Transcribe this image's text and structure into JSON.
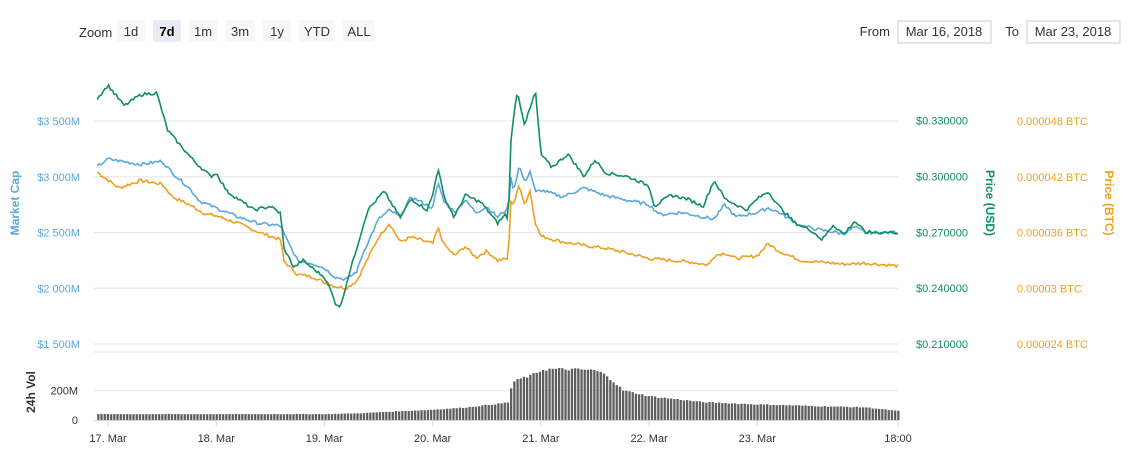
{
  "colors": {
    "market_cap": "#5ba8db",
    "price_usd": "#0f8f64",
    "price_btc": "#f0a020",
    "volume": "#5e5e5e"
  },
  "zoom": {
    "label": "Zoom",
    "buttons": [
      {
        "label": "1d",
        "active": false
      },
      {
        "label": "7d",
        "active": true
      },
      {
        "label": "1m",
        "active": false
      },
      {
        "label": "3m",
        "active": false
      },
      {
        "label": "1y",
        "active": false
      },
      {
        "label": "YTD",
        "active": false
      },
      {
        "label": "ALL",
        "active": false
      }
    ]
  },
  "range": {
    "from_label": "From",
    "from_value": "Mar 16, 2018",
    "to_label": "To",
    "to_value": "Mar 23, 2018"
  },
  "chart_data": {
    "type": "line",
    "x_range": [
      0,
      7.3
    ],
    "x_ticks": [
      {
        "x": 0.0,
        "label": "17. Mar"
      },
      {
        "x": 1.0,
        "label": "18. Mar"
      },
      {
        "x": 2.0,
        "label": "19. Mar"
      },
      {
        "x": 3.0,
        "label": "20. Mar"
      },
      {
        "x": 4.0,
        "label": "21. Mar"
      },
      {
        "x": 5.0,
        "label": "22. Mar"
      },
      {
        "x": 6.0,
        "label": "23. Mar"
      },
      {
        "x": 7.3,
        "label": "18:00"
      }
    ],
    "grid": true,
    "axes": {
      "market_cap": {
        "title": "Market Cap",
        "min": 1500,
        "max": 3850,
        "ticks": [
          {
            "v": 1500,
            "label": "$1 500M"
          },
          {
            "v": 2000,
            "label": "$2 000M"
          },
          {
            "v": 2500,
            "label": "$2 500M"
          },
          {
            "v": 3000,
            "label": "$3 000M"
          },
          {
            "v": 3500,
            "label": "$3 500M"
          }
        ]
      },
      "price_usd": {
        "title": "Price (USD)",
        "min": 0.21,
        "max": 0.3508,
        "ticks": [
          {
            "v": 0.21,
            "label": "$0.210000"
          },
          {
            "v": 0.24,
            "label": "$0.240000"
          },
          {
            "v": 0.27,
            "label": "$0.270000"
          },
          {
            "v": 0.3,
            "label": "$0.300000"
          },
          {
            "v": 0.33,
            "label": "$0.330000"
          }
        ]
      },
      "price_btc": {
        "title": "Price (BTC)",
        "min": 2.4e-05,
        "max": 5.22e-05,
        "ticks": [
          {
            "v": 2.4e-05,
            "label": "0.000024 BTC"
          },
          {
            "v": 3e-05,
            "label": "0.00003 BTC"
          },
          {
            "v": 3.6e-05,
            "label": "0.000036 BTC"
          },
          {
            "v": 4.2e-05,
            "label": "0.000042 BTC"
          },
          {
            "v": 4.8e-05,
            "label": "0.000048 BTC"
          }
        ]
      },
      "volume": {
        "title": "24h Vol",
        "min": 0,
        "max": 460,
        "ticks": [
          {
            "v": 0,
            "label": "0"
          },
          {
            "v": 200,
            "label": "200M"
          }
        ]
      }
    },
    "series": [
      {
        "name": "Market Cap",
        "key": "market_cap",
        "unit": "USD millions",
        "points": [
          [
            -0.1,
            3090
          ],
          [
            0.0,
            3160
          ],
          [
            0.3,
            3110
          ],
          [
            0.5,
            3140
          ],
          [
            0.6,
            3030
          ],
          [
            0.75,
            2900
          ],
          [
            0.85,
            2780
          ],
          [
            1.0,
            2720
          ],
          [
            1.2,
            2640
          ],
          [
            1.4,
            2580
          ],
          [
            1.6,
            2560
          ],
          [
            1.62,
            2500
          ],
          [
            1.75,
            2250
          ],
          [
            1.9,
            2220
          ],
          [
            2.0,
            2180
          ],
          [
            2.1,
            2100
          ],
          [
            2.2,
            2080
          ],
          [
            2.3,
            2150
          ],
          [
            2.35,
            2300
          ],
          [
            2.5,
            2620
          ],
          [
            2.6,
            2700
          ],
          [
            2.7,
            2640
          ],
          [
            2.8,
            2820
          ],
          [
            3.0,
            2720
          ],
          [
            3.05,
            2950
          ],
          [
            3.1,
            2790
          ],
          [
            3.2,
            2680
          ],
          [
            3.3,
            2790
          ],
          [
            3.4,
            2680
          ],
          [
            3.5,
            2730
          ],
          [
            3.6,
            2640
          ],
          [
            3.7,
            2720
          ],
          [
            3.72,
            3000
          ],
          [
            3.75,
            2880
          ],
          [
            3.8,
            3100
          ],
          [
            3.85,
            2950
          ],
          [
            3.9,
            3050
          ],
          [
            3.95,
            2860
          ],
          [
            4.0,
            2880
          ],
          [
            4.2,
            2820
          ],
          [
            4.4,
            2900
          ],
          [
            4.6,
            2830
          ],
          [
            4.8,
            2790
          ],
          [
            5.0,
            2750
          ],
          [
            5.1,
            2660
          ],
          [
            5.3,
            2680
          ],
          [
            5.5,
            2640
          ],
          [
            5.6,
            2620
          ],
          [
            5.7,
            2750
          ],
          [
            5.8,
            2640
          ],
          [
            6.0,
            2680
          ],
          [
            6.1,
            2720
          ],
          [
            6.2,
            2680
          ],
          [
            6.4,
            2560
          ],
          [
            6.6,
            2520
          ],
          [
            6.8,
            2490
          ],
          [
            6.9,
            2550
          ],
          [
            7.0,
            2500
          ],
          [
            7.3,
            2500
          ]
        ]
      },
      {
        "name": "Price (USD)",
        "key": "price_usd",
        "unit": "USD",
        "points": [
          [
            -0.1,
            0.342
          ],
          [
            0.0,
            0.349
          ],
          [
            0.15,
            0.338
          ],
          [
            0.3,
            0.344
          ],
          [
            0.45,
            0.345
          ],
          [
            0.55,
            0.325
          ],
          [
            0.65,
            0.318
          ],
          [
            0.8,
            0.308
          ],
          [
            0.95,
            0.3
          ],
          [
            1.0,
            0.302
          ],
          [
            1.1,
            0.292
          ],
          [
            1.2,
            0.288
          ],
          [
            1.35,
            0.282
          ],
          [
            1.5,
            0.284
          ],
          [
            1.6,
            0.28
          ],
          [
            1.62,
            0.262
          ],
          [
            1.72,
            0.251
          ],
          [
            1.8,
            0.255
          ],
          [
            1.95,
            0.248
          ],
          [
            2.0,
            0.246
          ],
          [
            2.05,
            0.24
          ],
          [
            2.1,
            0.232
          ],
          [
            2.15,
            0.23
          ],
          [
            2.2,
            0.242
          ],
          [
            2.28,
            0.258
          ],
          [
            2.4,
            0.282
          ],
          [
            2.55,
            0.292
          ],
          [
            2.7,
            0.278
          ],
          [
            2.8,
            0.288
          ],
          [
            2.95,
            0.282
          ],
          [
            3.0,
            0.29
          ],
          [
            3.05,
            0.305
          ],
          [
            3.1,
            0.29
          ],
          [
            3.2,
            0.278
          ],
          [
            3.3,
            0.29
          ],
          [
            3.45,
            0.286
          ],
          [
            3.6,
            0.275
          ],
          [
            3.68,
            0.28
          ],
          [
            3.7,
            0.275
          ],
          [
            3.72,
            0.318
          ],
          [
            3.78,
            0.346
          ],
          [
            3.85,
            0.328
          ],
          [
            3.92,
            0.34
          ],
          [
            3.95,
            0.346
          ],
          [
            4.0,
            0.312
          ],
          [
            4.1,
            0.305
          ],
          [
            4.25,
            0.312
          ],
          [
            4.4,
            0.3
          ],
          [
            4.5,
            0.309
          ],
          [
            4.6,
            0.302
          ],
          [
            4.8,
            0.3
          ],
          [
            5.0,
            0.295
          ],
          [
            5.05,
            0.284
          ],
          [
            5.2,
            0.29
          ],
          [
            5.35,
            0.288
          ],
          [
            5.5,
            0.284
          ],
          [
            5.6,
            0.298
          ],
          [
            5.7,
            0.288
          ],
          [
            5.9,
            0.282
          ],
          [
            6.0,
            0.288
          ],
          [
            6.1,
            0.292
          ],
          [
            6.2,
            0.284
          ],
          [
            6.35,
            0.275
          ],
          [
            6.5,
            0.271
          ],
          [
            6.6,
            0.266
          ],
          [
            6.7,
            0.274
          ],
          [
            6.8,
            0.269
          ],
          [
            6.9,
            0.276
          ],
          [
            7.0,
            0.27
          ],
          [
            7.3,
            0.27
          ]
        ]
      },
      {
        "name": "Price (BTC)",
        "key": "price_btc",
        "unit": "BTC",
        "points": [
          [
            -0.1,
            4.25e-05
          ],
          [
            0.1,
            4.08e-05
          ],
          [
            0.3,
            4.16e-05
          ],
          [
            0.5,
            4.12e-05
          ],
          [
            0.6,
            3.98e-05
          ],
          [
            0.75,
            3.9e-05
          ],
          [
            0.9,
            3.8e-05
          ],
          [
            1.0,
            3.78e-05
          ],
          [
            1.2,
            3.7e-05
          ],
          [
            1.4,
            3.6e-05
          ],
          [
            1.6,
            3.52e-05
          ],
          [
            1.62,
            3.3e-05
          ],
          [
            1.75,
            3.15e-05
          ],
          [
            1.9,
            3.12e-05
          ],
          [
            2.0,
            3.06e-05
          ],
          [
            2.1,
            3.02e-05
          ],
          [
            2.2,
            3e-05
          ],
          [
            2.3,
            3.08e-05
          ],
          [
            2.35,
            3.2e-05
          ],
          [
            2.5,
            3.55e-05
          ],
          [
            2.6,
            3.7e-05
          ],
          [
            2.7,
            3.5e-05
          ],
          [
            2.8,
            3.55e-05
          ],
          [
            3.0,
            3.48e-05
          ],
          [
            3.05,
            3.65e-05
          ],
          [
            3.1,
            3.48e-05
          ],
          [
            3.2,
            3.35e-05
          ],
          [
            3.3,
            3.45e-05
          ],
          [
            3.4,
            3.33e-05
          ],
          [
            3.5,
            3.4e-05
          ],
          [
            3.6,
            3.3e-05
          ],
          [
            3.7,
            3.32e-05
          ],
          [
            3.72,
            3.95e-05
          ],
          [
            3.75,
            3.9e-05
          ],
          [
            3.8,
            4.12e-05
          ],
          [
            3.85,
            3.9e-05
          ],
          [
            3.9,
            4.05e-05
          ],
          [
            3.95,
            3.7e-05
          ],
          [
            4.0,
            3.56e-05
          ],
          [
            4.2,
            3.5e-05
          ],
          [
            4.4,
            3.46e-05
          ],
          [
            4.6,
            3.43e-05
          ],
          [
            4.8,
            3.38e-05
          ],
          [
            5.0,
            3.32e-05
          ],
          [
            5.2,
            3.3e-05
          ],
          [
            5.4,
            3.28e-05
          ],
          [
            5.55,
            3.25e-05
          ],
          [
            5.6,
            3.35e-05
          ],
          [
            5.7,
            3.38e-05
          ],
          [
            5.8,
            3.32e-05
          ],
          [
            6.0,
            3.35e-05
          ],
          [
            6.1,
            3.48e-05
          ],
          [
            6.2,
            3.4e-05
          ],
          [
            6.4,
            3.3e-05
          ],
          [
            6.6,
            3.28e-05
          ],
          [
            6.8,
            3.26e-05
          ],
          [
            7.0,
            3.27e-05
          ],
          [
            7.3,
            3.24e-05
          ]
        ]
      },
      {
        "name": "24h Vol",
        "key": "volume",
        "unit": "USD millions",
        "points": [
          [
            -0.1,
            40
          ],
          [
            1.5,
            40
          ],
          [
            2.0,
            40
          ],
          [
            2.3,
            45
          ],
          [
            2.7,
            60
          ],
          [
            3.0,
            70
          ],
          [
            3.3,
            85
          ],
          [
            3.6,
            110
          ],
          [
            3.7,
            120
          ],
          [
            3.72,
            250
          ],
          [
            3.8,
            280
          ],
          [
            3.9,
            300
          ],
          [
            4.0,
            340
          ],
          [
            4.1,
            345
          ],
          [
            4.4,
            340
          ],
          [
            4.5,
            335
          ],
          [
            4.6,
            300
          ],
          [
            4.75,
            200
          ],
          [
            5.0,
            160
          ],
          [
            5.5,
            120
          ],
          [
            6.0,
            105
          ],
          [
            6.5,
            95
          ],
          [
            7.0,
            85
          ],
          [
            7.3,
            60
          ]
        ]
      }
    ]
  }
}
